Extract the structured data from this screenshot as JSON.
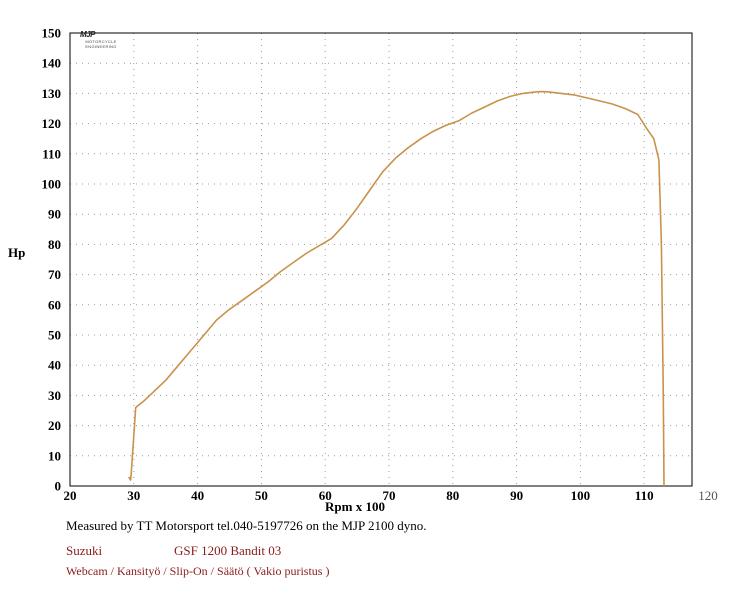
{
  "chart_data": {
    "type": "line",
    "xlabel": "Rpm x 100",
    "ylabel": "Hp",
    "xlim": [
      20,
      120
    ],
    "ylim": [
      0,
      150
    ],
    "x_ticks": [
      20,
      30,
      40,
      50,
      60,
      70,
      80,
      90,
      100,
      110,
      120
    ],
    "y_ticks": [
      0,
      10,
      20,
      30,
      40,
      50,
      60,
      70,
      80,
      90,
      100,
      110,
      120,
      130,
      140,
      150
    ],
    "grid": "dotted",
    "line_color": "#c9924a",
    "series": [
      {
        "x": [
          29.2,
          29.5,
          29.6,
          30.3,
          31.5,
          33,
          35,
          37,
          39,
          41,
          43,
          45,
          47,
          49,
          51,
          53,
          55,
          57,
          59,
          61,
          63,
          65,
          67,
          69,
          71,
          73,
          75,
          77,
          79,
          81,
          83,
          85,
          87,
          89,
          91,
          93,
          94,
          95,
          97,
          99,
          101,
          103,
          105,
          107,
          109,
          110.5,
          111.5,
          112.3,
          112.7,
          113,
          113.1
        ],
        "y": [
          3,
          2,
          4,
          26,
          28,
          31,
          35,
          40,
          45,
          50,
          55,
          58.5,
          61.5,
          64.5,
          67.5,
          71,
          74,
          77,
          79.5,
          82,
          86.5,
          92,
          98,
          104,
          108.5,
          112,
          115,
          117.5,
          119.5,
          121,
          123.5,
          125.5,
          127.5,
          129,
          130,
          130.5,
          130.6,
          130.5,
          130,
          129.5,
          128.5,
          127.5,
          126.5,
          125,
          123,
          118,
          115,
          108,
          80,
          30,
          0
        ]
      }
    ]
  },
  "logo": {
    "mark": "MJP",
    "subtitle": "MOTORCYCLE ENGINEERING"
  },
  "footer": {
    "caption": "Measured by TT Motorsport tel.040-5197726 on the MJP 2100 dyno.",
    "make": "Suzuki",
    "model": "GSF 1200 Bandit 03",
    "config": "Webcam / Kansityö / Slip-On / Säätö ( Vakio puristus )"
  },
  "colors": {
    "curve": "#c9924a",
    "footer_text": "#8b1a1a",
    "grid": "#9a9a9a"
  }
}
